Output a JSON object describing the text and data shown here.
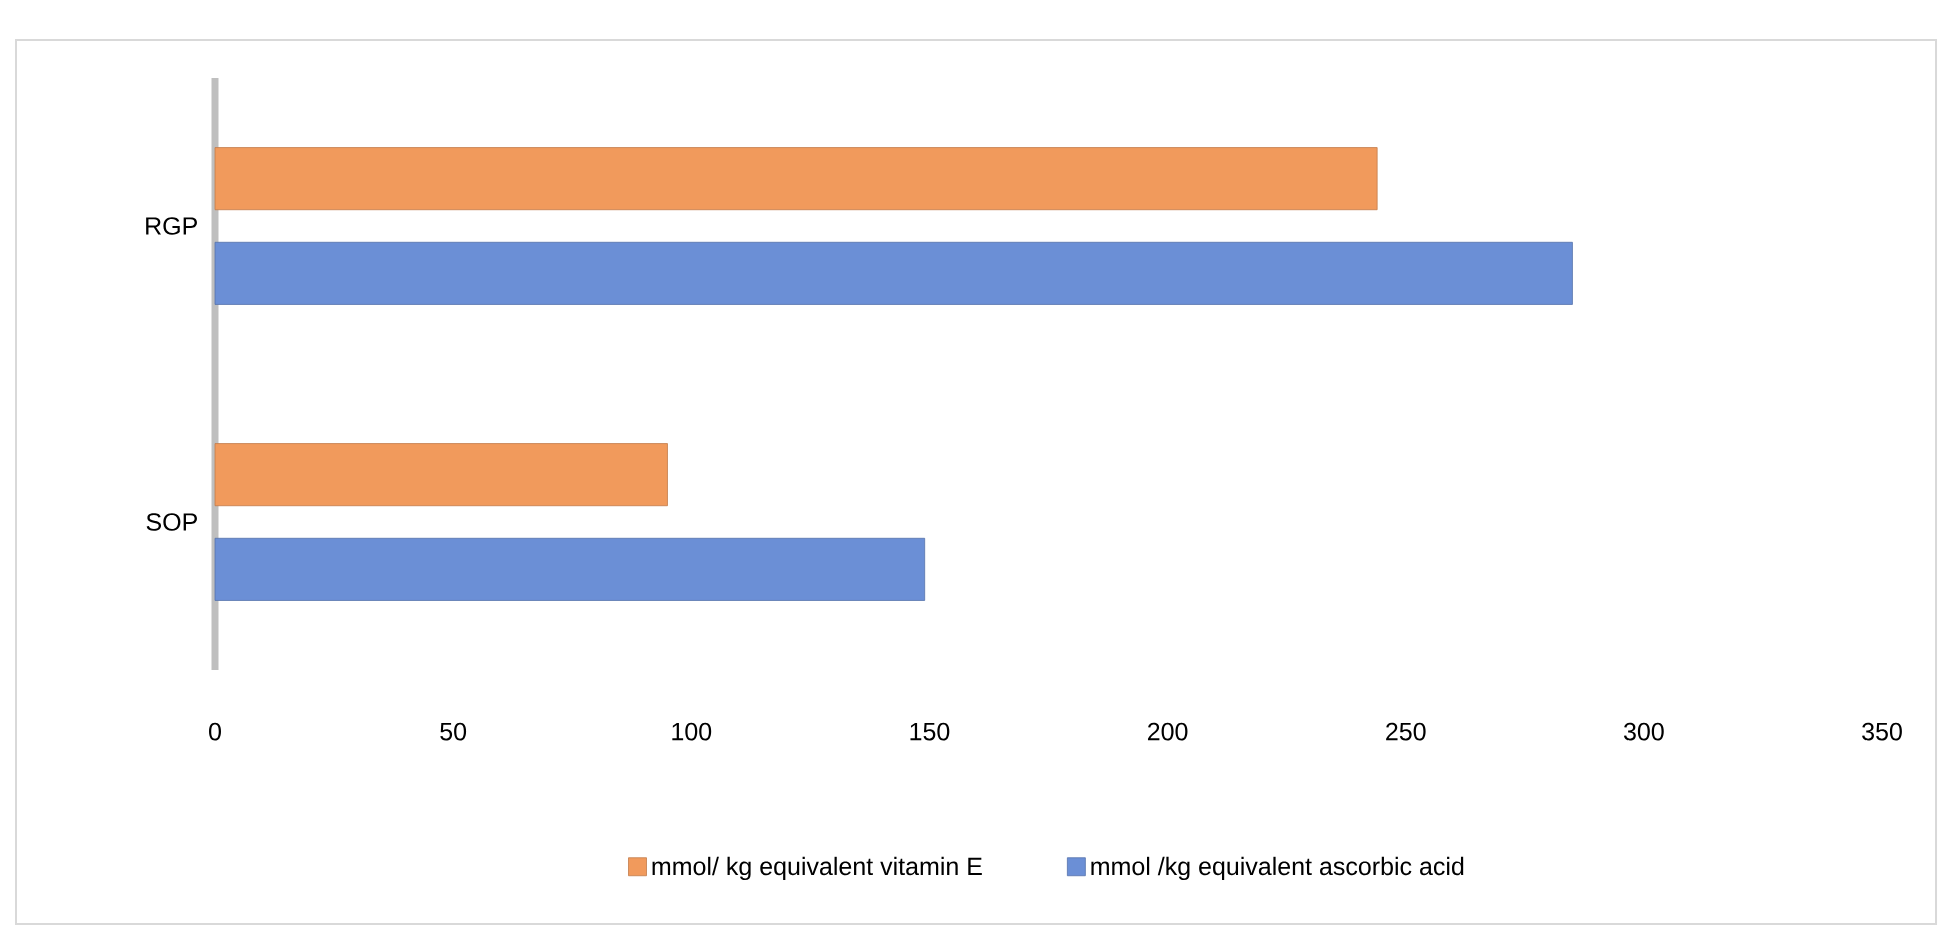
{
  "chart_data": {
    "type": "bar",
    "orientation": "horizontal",
    "categories": [
      "RGP",
      "SOP"
    ],
    "series": [
      {
        "name": "mmol/ kg equivalent vitamin E",
        "color": "#f19a5c",
        "values": [
          244,
          95
        ]
      },
      {
        "name": "mmol /kg equivalent ascorbic acid",
        "color": "#6b8fd6",
        "values": [
          285,
          149
        ]
      }
    ],
    "xlim": [
      0,
      350
    ],
    "xticks": [
      0,
      50,
      100,
      150,
      200,
      250,
      300,
      350
    ],
    "legend": "bottom"
  }
}
